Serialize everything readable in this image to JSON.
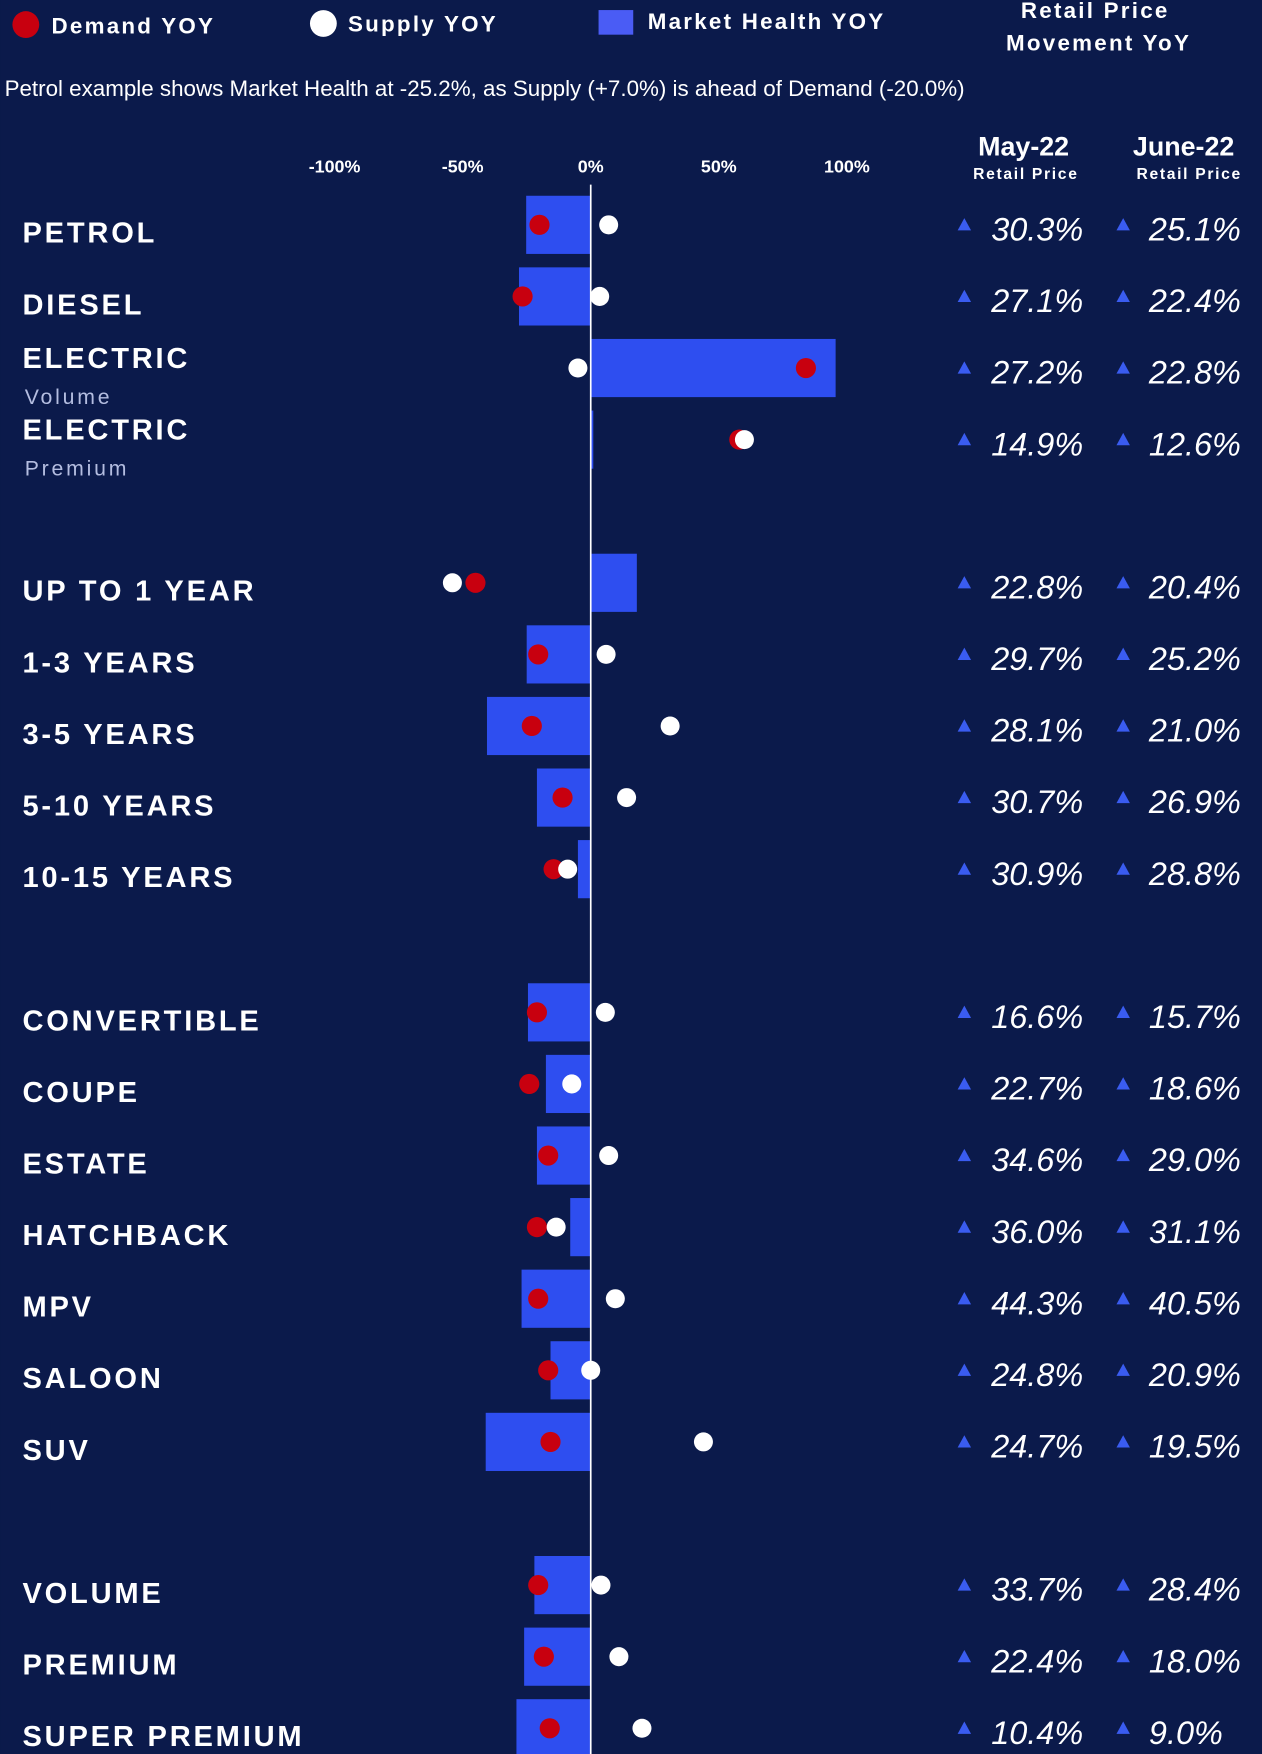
{
  "chart_data": {
    "type": "bar",
    "legend": {
      "demand": "Demand YOY",
      "supply": "Supply YOY",
      "market_health": "Market Health YOY",
      "price_header": [
        "Retail Price",
        "Movement YoY"
      ]
    },
    "note": "Petrol example shows Market Health at -25.2%, as Supply (+7.0%) is ahead of Demand (-20.0%)",
    "columns": [
      {
        "title": "May-22",
        "subtitle": "Retail Price"
      },
      {
        "title": "June-22",
        "subtitle": "Retail Price"
      }
    ],
    "colors": {
      "background": "#0b1a4b",
      "market_health": "#2e4ef0",
      "legend_square": "#4a5cf5",
      "demand": "#c8000f",
      "supply": "#ffffff",
      "triangle": "#3a5cf0"
    },
    "xlim": [
      -100,
      100
    ],
    "xticks": [
      {
        "value": -100,
        "label": "-100%"
      },
      {
        "value": -50,
        "label": "-50%"
      },
      {
        "value": 0,
        "label": "0%"
      },
      {
        "value": 50,
        "label": "50%"
      },
      {
        "value": 100,
        "label": "100%"
      }
    ],
    "groups": [
      {
        "rows": [
          {
            "label": "PETROL",
            "market_health": -25.2,
            "demand": -20.0,
            "supply": 7.0,
            "prices": [
              "30.3%",
              "25.1%"
            ]
          },
          {
            "label": "DIESEL",
            "market_health": -28,
            "demand": -26.6,
            "supply": 3.5,
            "prices": [
              "27.1%",
              "22.4%"
            ]
          },
          {
            "label": "ELECTRIC",
            "sublabel": "Volume",
            "market_health": 95.6,
            "demand": 84,
            "supply": -5,
            "prices": [
              "27.2%",
              "22.8%"
            ]
          },
          {
            "label": "ELECTRIC",
            "sublabel": "Premium",
            "market_health": 1,
            "demand": 58,
            "supply": 60,
            "prices": [
              "14.9%",
              "12.6%"
            ]
          }
        ]
      },
      {
        "rows": [
          {
            "label": "UP TO 1 YEAR",
            "market_health": 18,
            "demand": -45,
            "supply": -54,
            "prices": [
              "22.8%",
              "20.4%"
            ]
          },
          {
            "label": "1-3 YEARS",
            "market_health": -25,
            "demand": -20.5,
            "supply": 6,
            "prices": [
              "29.7%",
              "25.2%"
            ]
          },
          {
            "label": "3-5 YEARS",
            "market_health": -40.5,
            "demand": -23,
            "supply": 31,
            "prices": [
              "28.1%",
              "21.0%"
            ]
          },
          {
            "label": "5-10 YEARS",
            "market_health": -21,
            "demand": -11,
            "supply": 14,
            "prices": [
              "30.7%",
              "26.9%"
            ]
          },
          {
            "label": "10-15 YEARS",
            "market_health": -5,
            "demand": -14.5,
            "supply": -9,
            "prices": [
              "30.9%",
              "28.8%"
            ]
          }
        ]
      },
      {
        "rows": [
          {
            "label": "CONVERTIBLE",
            "market_health": -24.5,
            "demand": -21,
            "supply": 5.7,
            "prices": [
              "16.6%",
              "15.7%"
            ]
          },
          {
            "label": "COUPE",
            "market_health": -17.5,
            "demand": -24,
            "supply": -7.4,
            "prices": [
              "22.7%",
              "18.6%"
            ]
          },
          {
            "label": "ESTATE",
            "market_health": -21,
            "demand": -16.6,
            "supply": 7,
            "prices": [
              "34.6%",
              "29.0%"
            ]
          },
          {
            "label": "HATCHBACK",
            "market_health": -8,
            "demand": -21,
            "supply": -13.5,
            "prices": [
              "36.0%",
              "31.1%"
            ]
          },
          {
            "label": "MPV",
            "market_health": -27,
            "demand": -20.5,
            "supply": 9.6,
            "prices": [
              "44.3%",
              "40.5%"
            ]
          },
          {
            "label": "SALOON",
            "market_health": -15.7,
            "demand": -16.6,
            "supply": 0,
            "prices": [
              "24.8%",
              "20.9%"
            ]
          },
          {
            "label": "SUV",
            "market_health": -41,
            "demand": -15.7,
            "supply": 44,
            "prices": [
              "24.7%",
              "19.5%"
            ]
          }
        ]
      },
      {
        "rows": [
          {
            "label": "VOLUME",
            "market_health": -22,
            "demand": -20.5,
            "supply": 4,
            "prices": [
              "33.7%",
              "28.4%"
            ]
          },
          {
            "label": "PREMIUM",
            "market_health": -26,
            "demand": -18.3,
            "supply": 11,
            "prices": [
              "22.4%",
              "18.0%"
            ]
          },
          {
            "label": "SUPER PREMIUM",
            "market_health": -29,
            "demand": -16,
            "supply": 20,
            "prices": [
              "10.4%",
              "9.0%"
            ]
          }
        ]
      }
    ]
  }
}
